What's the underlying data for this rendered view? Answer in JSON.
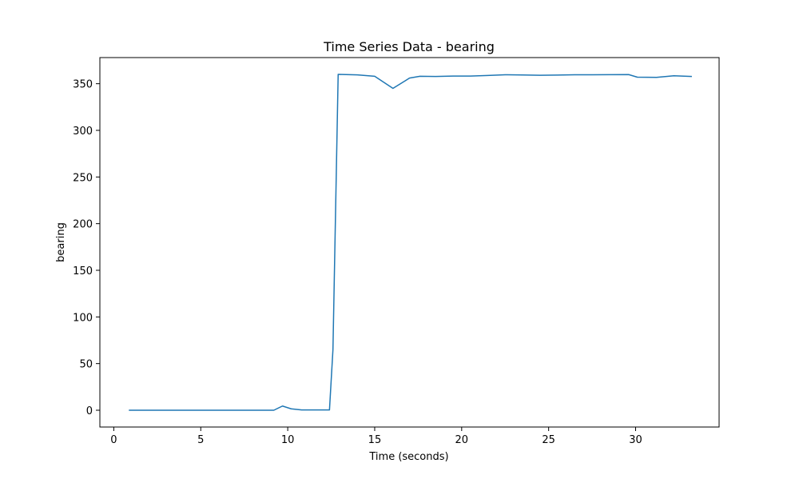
{
  "chart_data": {
    "type": "line",
    "title": "Time Series Data - bearing",
    "xlabel": "Time (seconds)",
    "ylabel": "bearing",
    "xlim": [
      -0.8,
      34.8
    ],
    "ylim": [
      -18,
      378
    ],
    "xticks": [
      0,
      5,
      10,
      15,
      20,
      25,
      30
    ],
    "yticks": [
      0,
      50,
      100,
      150,
      200,
      250,
      300,
      350
    ],
    "grid": false,
    "series": [
      {
        "color": "#1f77b4",
        "x": [
          0.9,
          2.0,
          4.0,
          6.0,
          8.0,
          9.2,
          9.7,
          10.2,
          10.8,
          11.5,
          12.4,
          12.6,
          12.9,
          14.0,
          15.0,
          16.05,
          17.0,
          17.6,
          18.5,
          19.5,
          20.5,
          21.5,
          22.5,
          23.5,
          24.5,
          25.5,
          26.5,
          27.5,
          28.5,
          29.6,
          30.1,
          31.2,
          32.2,
          33.2
        ],
        "y": [
          0,
          0,
          0,
          0,
          0,
          0,
          4.5,
          1.5,
          0.3,
          0.3,
          0.3,
          65,
          360,
          359.5,
          358,
          345,
          356,
          358,
          357.8,
          358.2,
          358.2,
          358.8,
          359.6,
          359.4,
          359.0,
          359.2,
          359.6,
          359.6,
          359.7,
          359.8,
          357.0,
          356.8,
          358.5,
          357.8
        ]
      }
    ]
  }
}
